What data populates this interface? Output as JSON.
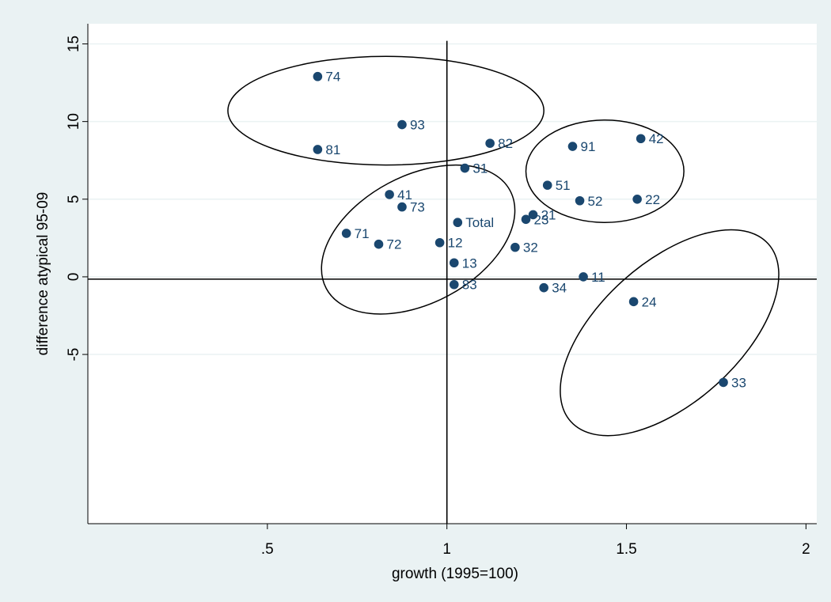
{
  "chart_data": {
    "type": "scatter",
    "xlabel": "growth (1995=100)",
    "ylabel": "difference atypical 95-09",
    "xlim": [
      0,
      2.03
    ],
    "ylim": [
      -15.9,
      16.3
    ],
    "x_ticks": [
      {
        "value": 0.5,
        "label": ".5"
      },
      {
        "value": 1,
        "label": "1"
      },
      {
        "value": 1.5,
        "label": "1.5"
      },
      {
        "value": 2,
        "label": "2"
      }
    ],
    "y_ticks": [
      {
        "value": -5,
        "label": "-5"
      },
      {
        "value": 0,
        "label": "0"
      },
      {
        "value": 5,
        "label": "5"
      },
      {
        "value": 10,
        "label": "10"
      },
      {
        "value": 15,
        "label": "15"
      }
    ],
    "grid": "horizontal",
    "reference_lines": {
      "x": 1.0,
      "y": -0.15
    },
    "marker_color": "#1a476f",
    "points": [
      {
        "label": "74",
        "x": 0.64,
        "y": 12.9
      },
      {
        "label": "93",
        "x": 0.875,
        "y": 9.8
      },
      {
        "label": "81",
        "x": 0.64,
        "y": 8.2
      },
      {
        "label": "82",
        "x": 1.12,
        "y": 8.6
      },
      {
        "label": "31",
        "x": 1.05,
        "y": 7.0
      },
      {
        "label": "91",
        "x": 1.35,
        "y": 8.4
      },
      {
        "label": "42",
        "x": 1.54,
        "y": 8.9
      },
      {
        "label": "51",
        "x": 1.28,
        "y": 5.9
      },
      {
        "label": "52",
        "x": 1.37,
        "y": 4.9
      },
      {
        "label": "22",
        "x": 1.53,
        "y": 5.0
      },
      {
        "label": "41",
        "x": 0.84,
        "y": 5.3
      },
      {
        "label": "73",
        "x": 0.875,
        "y": 4.5
      },
      {
        "label": "Total",
        "x": 1.03,
        "y": 3.5
      },
      {
        "label": "21",
        "x": 1.24,
        "y": 4.0
      },
      {
        "label": "23",
        "x": 1.22,
        "y": 3.7
      },
      {
        "label": "71",
        "x": 0.72,
        "y": 2.8
      },
      {
        "label": "72",
        "x": 0.81,
        "y": 2.1
      },
      {
        "label": "12",
        "x": 0.98,
        "y": 2.2
      },
      {
        "label": "32",
        "x": 1.19,
        "y": 1.9
      },
      {
        "label": "13",
        "x": 1.02,
        "y": 0.9
      },
      {
        "label": "11",
        "x": 1.38,
        "y": 0.0
      },
      {
        "label": "83",
        "x": 1.02,
        "y": -0.5
      },
      {
        "label": "34",
        "x": 1.27,
        "y": -0.7
      },
      {
        "label": "24",
        "x": 1.52,
        "y": -1.6
      },
      {
        "label": "33",
        "x": 1.77,
        "y": -6.8
      }
    ],
    "ellipses": [
      {
        "cx": 0.83,
        "cy": 10.7,
        "rx": 0.44,
        "ry": 3.5,
        "rotate": 0
      },
      {
        "cx": 1.44,
        "cy": 6.8,
        "rx": 0.22,
        "ry": 3.3,
        "rotate": 0
      },
      {
        "cx": 0.92,
        "cy": 2.4,
        "rx": 0.29,
        "ry": 4.1,
        "rotate": -28
      },
      {
        "cx": 1.62,
        "cy": -3.6,
        "rx": 0.37,
        "ry": 4.5,
        "rotate": -42
      }
    ]
  }
}
